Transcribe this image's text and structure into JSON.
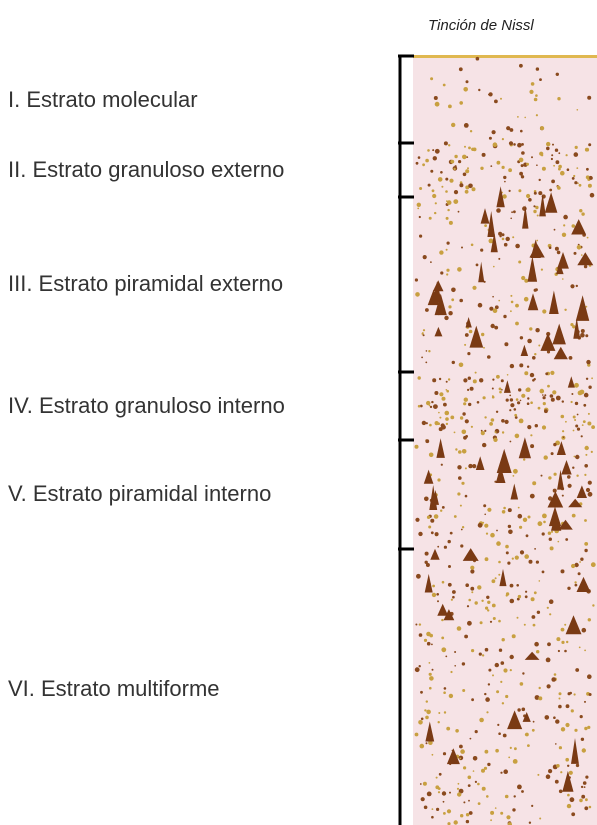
{
  "header": {
    "title": "Tinción de Nissl"
  },
  "layers": [
    {
      "label": "I. Estrato molecular"
    },
    {
      "label": "II. Estrato granuloso externo"
    },
    {
      "label": "III. Estrato piramidal externo"
    },
    {
      "label": "IV. Estrato granuloso interno"
    },
    {
      "label": "V. Estrato piramidal interno"
    },
    {
      "label": "VI. Estrato multiforme"
    }
  ]
}
